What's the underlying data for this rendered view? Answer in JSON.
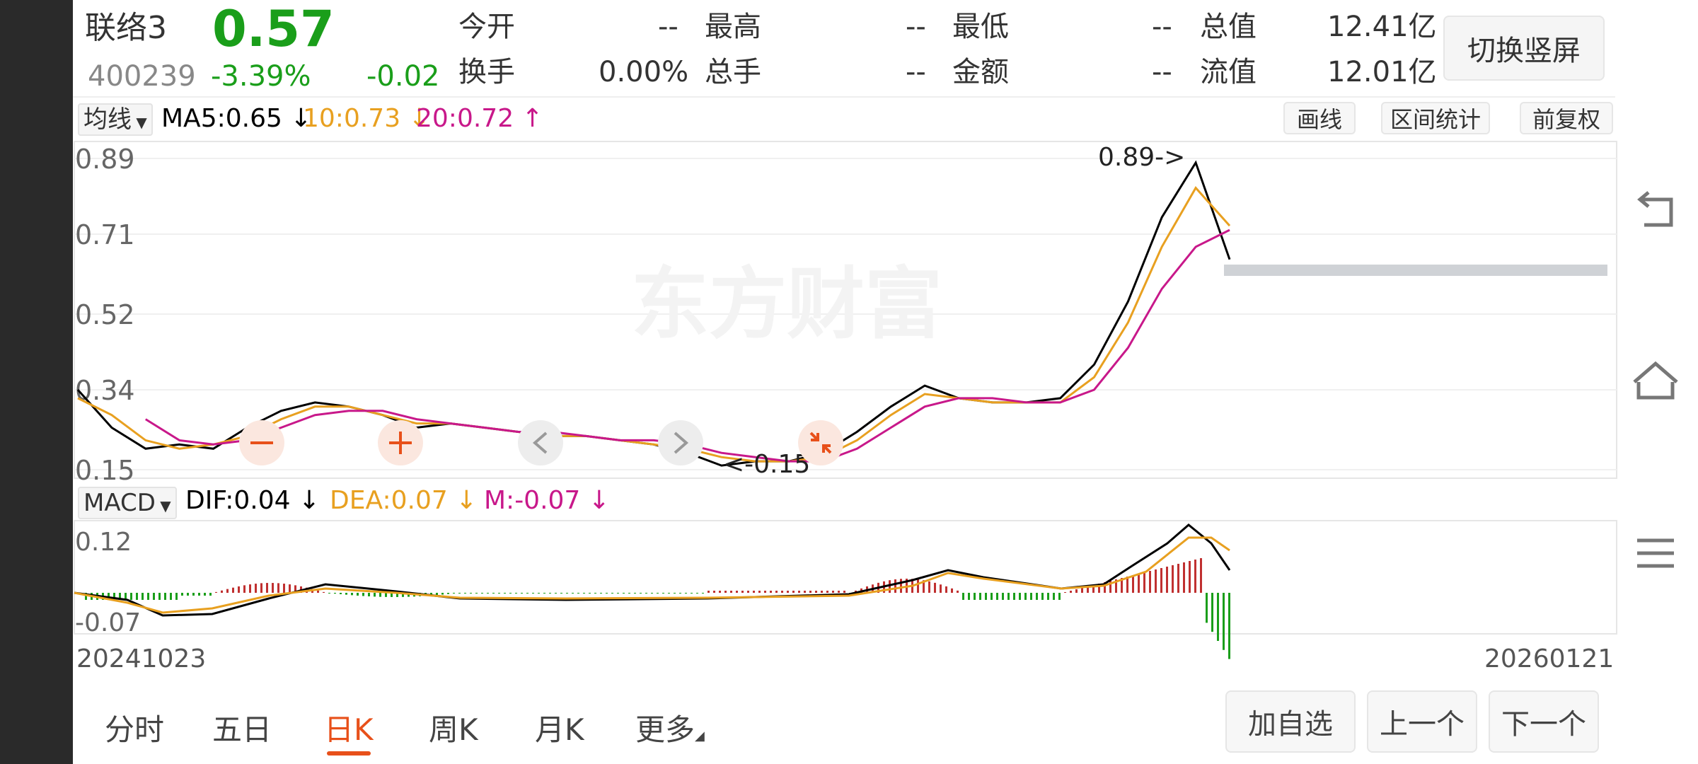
{
  "header": {
    "name": "联络3",
    "price": "0.57",
    "code": "400239",
    "change_pct": "-3.39%",
    "change_abs": "-0.02",
    "open_label": "今开",
    "open_value": "--",
    "high_label": "最高",
    "high_value": "--",
    "low_label": "最低",
    "low_value": "--",
    "total_value_label": "总值",
    "total_value": "12.41亿",
    "turnover_label": "换手",
    "turnover_value": "0.00%",
    "total_hands_label": "总手",
    "total_hands_value": "--",
    "amount_label": "金额",
    "amount_value": "--",
    "float_value_label": "流值",
    "float_value": "12.01亿",
    "switch_button": "切换竖屏"
  },
  "ma_bar": {
    "selector": "均线",
    "ma5": "MA5:0.65 ↓",
    "ma10": "10:0.73 ↓",
    "ma20": "20:0.72 ↑",
    "draw_button": "画线",
    "range_stats_button": "区间统计",
    "adjust_button": "前复权"
  },
  "macd_bar": {
    "selector": "MACD",
    "dif": "DIF:0.04 ↓",
    "dea": "DEA:0.07 ↓",
    "m": "M:-0.07 ↓"
  },
  "chart": {
    "watermark": "东方财富",
    "y_labels": [
      "0.89",
      "0.71",
      "0.52",
      "0.34",
      "0.15"
    ],
    "max_marker": "0.89->",
    "min_marker": "<-0.15",
    "macd_y_labels": [
      "0.12",
      "-0.07"
    ],
    "date_start": "20241023",
    "date_end": "20260121"
  },
  "tabs": [
    "分时",
    "五日",
    "日K",
    "周K",
    "月K",
    "更多"
  ],
  "active_tab": "日K",
  "bottom_buttons": {
    "add_watch": "加自选",
    "prev": "上一个",
    "next": "下一个"
  },
  "colors": {
    "up": "#1a9e1a",
    "ma5": "#000000",
    "ma10": "#e8a020",
    "ma20": "#c8188a",
    "macd_up": "#c03030",
    "macd_down": "#1a9e1a",
    "accent": "#e8501a"
  },
  "chart_data": {
    "type": "line",
    "series": [
      {
        "name": "MA5",
        "values": [
          0.34,
          0.25,
          0.2,
          0.21,
          0.2,
          0.25,
          0.29,
          0.31,
          0.3,
          0.28,
          0.25,
          0.26,
          0.25,
          0.24,
          0.23,
          0.23,
          0.22,
          0.21,
          0.19,
          0.16,
          0.17,
          0.17,
          0.19,
          0.24,
          0.3,
          0.35,
          0.32,
          0.31,
          0.31,
          0.32,
          0.4,
          0.55,
          0.75,
          0.88,
          0.65
        ]
      },
      {
        "name": "MA10",
        "values": [
          0.32,
          0.28,
          0.22,
          0.2,
          0.21,
          0.23,
          0.27,
          0.3,
          0.3,
          0.28,
          0.26,
          0.26,
          0.25,
          0.24,
          0.23,
          0.23,
          0.22,
          0.21,
          0.2,
          0.18,
          0.17,
          0.17,
          0.18,
          0.22,
          0.28,
          0.33,
          0.32,
          0.31,
          0.31,
          0.31,
          0.37,
          0.5,
          0.68,
          0.82,
          0.73
        ]
      },
      {
        "name": "MA20",
        "values": [
          null,
          null,
          0.27,
          0.22,
          0.21,
          0.22,
          0.25,
          0.28,
          0.29,
          0.29,
          0.27,
          0.26,
          0.25,
          0.24,
          0.24,
          0.23,
          0.22,
          0.22,
          0.21,
          0.19,
          0.18,
          0.17,
          0.17,
          0.2,
          0.25,
          0.3,
          0.32,
          0.32,
          0.31,
          0.31,
          0.34,
          0.44,
          0.58,
          0.68,
          0.72
        ]
      }
    ],
    "ylim": [
      0.15,
      0.89
    ]
  }
}
